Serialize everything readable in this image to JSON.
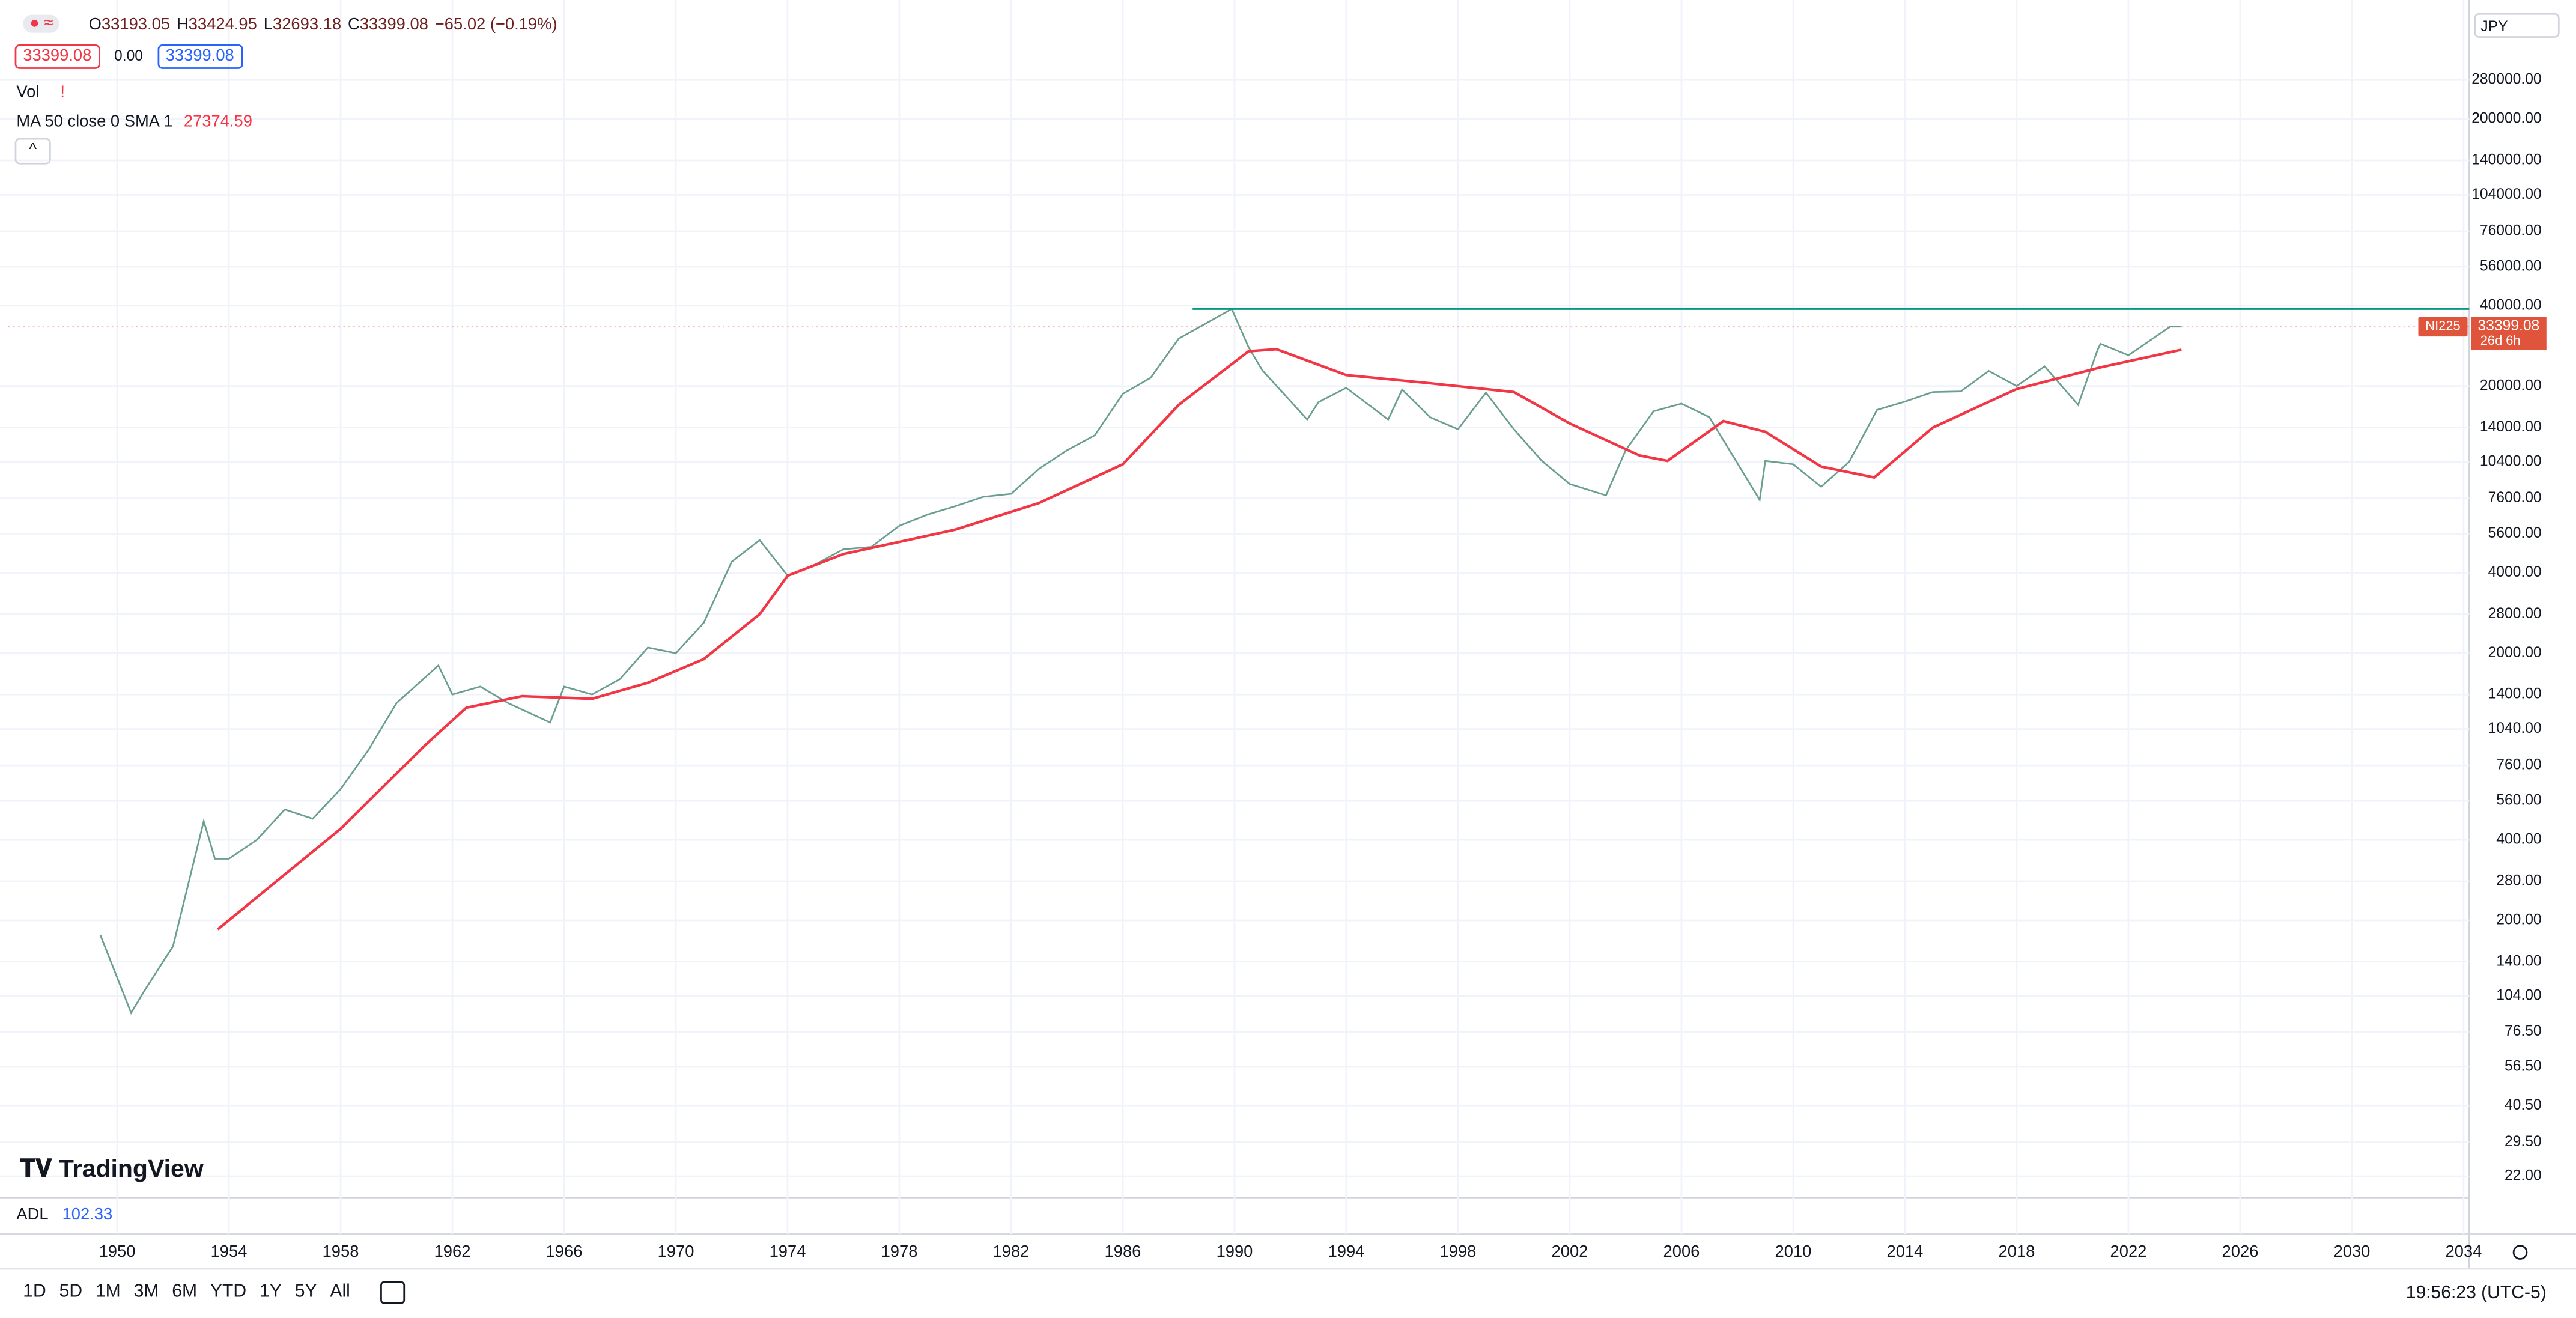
{
  "chart_data": {
    "type": "line",
    "log_scale": true,
    "grid": true,
    "xlim": [
      1946.1,
      2034.2
    ],
    "xticks": [
      1950,
      1954,
      1958,
      1962,
      1966,
      1970,
      1974,
      1978,
      1982,
      1986,
      1990,
      1994,
      1998,
      2002,
      2006,
      2010,
      2014,
      2018,
      2022,
      2026,
      2030,
      2034
    ],
    "ylim": [
      18.5,
      520000
    ],
    "yticks": [
      {
        "value": 280000,
        "label": "280000.00"
      },
      {
        "value": 200000,
        "label": "200000.00"
      },
      {
        "value": 140000,
        "label": "140000.00"
      },
      {
        "value": 104000,
        "label": "104000.00"
      },
      {
        "value": 76000,
        "label": "76000.00"
      },
      {
        "value": 56000,
        "label": "56000.00"
      },
      {
        "value": 40000,
        "label": "40000.00"
      },
      {
        "value": 20000,
        "label": "20000.00"
      },
      {
        "value": 14000,
        "label": "14000.00"
      },
      {
        "value": 10400,
        "label": "10400.00"
      },
      {
        "value": 7600,
        "label": "7600.00"
      },
      {
        "value": 5600,
        "label": "5600.00"
      },
      {
        "value": 4000,
        "label": "4000.00"
      },
      {
        "value": 2800,
        "label": "2800.00"
      },
      {
        "value": 2000,
        "label": "2000.00"
      },
      {
        "value": 1400,
        "label": "1400.00"
      },
      {
        "value": 1040,
        "label": "1040.00"
      },
      {
        "value": 760,
        "label": "760.00"
      },
      {
        "value": 560,
        "label": "560.00"
      },
      {
        "value": 400,
        "label": "400.00"
      },
      {
        "value": 280,
        "label": "280.00"
      },
      {
        "value": 200,
        "label": "200.00"
      },
      {
        "value": 140,
        "label": "140.00"
      },
      {
        "value": 104,
        "label": "104.00"
      },
      {
        "value": 76.5,
        "label": "76.50"
      },
      {
        "value": 56.5,
        "label": "56.50"
      },
      {
        "value": 40.5,
        "label": "40.50"
      },
      {
        "value": 29.5,
        "label": "29.50"
      },
      {
        "value": 22,
        "label": "22.00"
      }
    ],
    "series": [
      {
        "name": "NI225",
        "color": "#6a9f8f",
        "x": [
          1949.4,
          1950.5,
          1951,
          1952,
          1953.1,
          1953.5,
          1954,
          1955,
          1956,
          1957,
          1958,
          1959,
          1960,
          1961.5,
          1962,
          1963,
          1964,
          1965.5,
          1966,
          1967,
          1968,
          1969,
          1970,
          1971,
          1972,
          1973,
          1974,
          1975,
          1976,
          1977,
          1978,
          1979,
          1980,
          1981,
          1982,
          1983,
          1984,
          1985,
          1986,
          1987,
          1988,
          1989.9,
          1990.5,
          1990.9,
          1991,
          1992.6,
          1993,
          1994,
          1995.5,
          1996,
          1997,
          1998,
          1999,
          2000,
          2001,
          2002,
          2003.3,
          2004,
          2005,
          2006,
          2007,
          2008.8,
          2009,
          2010,
          2011,
          2012,
          2013,
          2014,
          2015,
          2016,
          2017,
          2018,
          2019,
          2020.2,
          2020.9,
          2021,
          2022,
          2023.5,
          2023.9
        ],
        "values": [
          176,
          90,
          110,
          160,
          470,
          340,
          340,
          400,
          520,
          480,
          620,
          870,
          1300,
          1800,
          1400,
          1500,
          1300,
          1100,
          1500,
          1400,
          1600,
          2100,
          2000,
          2600,
          4400,
          5300,
          3900,
          4300,
          4900,
          5000,
          6000,
          6600,
          7100,
          7700,
          7900,
          9800,
          11500,
          13100,
          18700,
          21500,
          30100,
          38900,
          28000,
          23800,
          22900,
          15000,
          17400,
          19700,
          15000,
          19400,
          15300,
          13800,
          18900,
          13800,
          10500,
          8600,
          7800,
          11500,
          16100,
          17200,
          15300,
          7500,
          10500,
          10200,
          8400,
          10400,
          16300,
          17500,
          19000,
          19100,
          22800,
          20000,
          23700,
          17000,
          27400,
          28800,
          26100,
          33400,
          33399.08
        ]
      },
      {
        "name": "MA 50 close 0 SMA 1",
        "color": "#f23645",
        "x": [
          1953.6,
          1958,
          1961,
          1962.5,
          1964.5,
          1967,
          1969,
          1971,
          1973,
          1974,
          1976,
          1980,
          1983,
          1986,
          1988,
          1990.5,
          1991.5,
          1994,
          1997,
          2000,
          2002,
          2004.5,
          2005.5,
          2007.5,
          2009,
          2011,
          2012.9,
          2015,
          2018,
          2021,
          2023.9
        ],
        "values": [
          185,
          440,
          900,
          1250,
          1380,
          1350,
          1550,
          1900,
          2800,
          3900,
          4700,
          5800,
          7300,
          10200,
          17000,
          27000,
          27500,
          22000,
          20500,
          19000,
          14500,
          11000,
          10500,
          14800,
          13500,
          10000,
          9100,
          14000,
          19500,
          23500,
          27374.59
        ]
      }
    ],
    "reference_line": {
      "value": 38915,
      "x_start": 1988.5,
      "color": "#089981"
    },
    "last_price": {
      "symbol": "NI225",
      "value": 33399.08,
      "label": "33399.08",
      "countdown": "26d 6h",
      "color": "#e0543c"
    }
  },
  "ui": {
    "ohlc": [
      {
        "key": "O",
        "value": "33193.05"
      },
      {
        "key": "H",
        "value": "33424.95"
      },
      {
        "key": "L",
        "value": "32693.18"
      },
      {
        "key": "C",
        "value": "33399.08"
      }
    ],
    "change": "−65.02 (−0.19%)",
    "bid": "33399.08",
    "spread": "0.00",
    "ask": "33399.08",
    "vol": "Vol",
    "ma_label": "MA 50 close 0 SMA 1",
    "ma_value": "27374.59",
    "adl_label": "ADL",
    "adl_value": "102.33",
    "logo": "TradingView",
    "currency": "JPY",
    "ranges": [
      "1D",
      "5D",
      "1M",
      "3M",
      "6M",
      "YTD",
      "1Y",
      "5Y",
      "All"
    ],
    "clock": "19:56:23 (UTC-5)"
  }
}
